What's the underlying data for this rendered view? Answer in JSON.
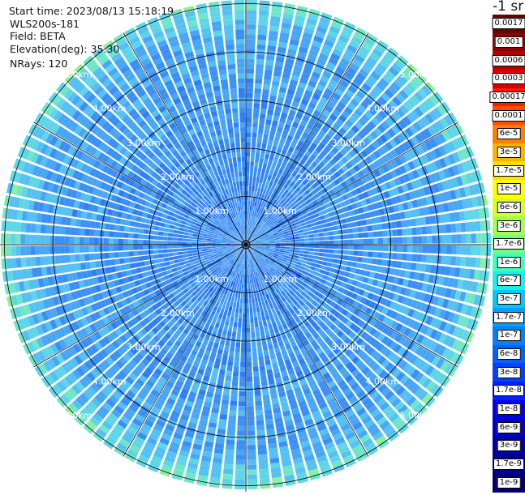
{
  "info": {
    "start_time": "Start time: 2023/08/13 15:18:19",
    "instrument": "WLS200s-181",
    "field": "Field: BETA",
    "elevation": "Elevation(deg): 35.30",
    "nrays": "NRays: 120"
  },
  "range_rings": [
    {
      "label": "1.00km",
      "km": 1
    },
    {
      "label": "2.00km",
      "km": 2
    },
    {
      "label": "3.00km",
      "km": 3
    },
    {
      "label": "4.00km",
      "km": 4
    },
    {
      "label": "5.00km",
      "km": 5
    }
  ],
  "max_range_km": 5.0,
  "colorbar": {
    "title": "-1 sr",
    "labels": [
      "0.0017",
      "0.001",
      "0.0006",
      "0.0003",
      "0.00017",
      "0.0001",
      "6e-5",
      "3e-5",
      "1.7e-5",
      "1e-5",
      "6e-6",
      "3e-6",
      "1.7e-6",
      "1e-6",
      "6e-7",
      "3e-7",
      "1.7e-7",
      "1e-7",
      "6e-8",
      "3e-8",
      "1.7e-8",
      "1e-8",
      "6e-9",
      "3e-9",
      "1.7e-9",
      "1e-9"
    ],
    "colors": [
      "#6b0000",
      "#8f0000",
      "#b30000",
      "#d80000",
      "#ff1a00",
      "#ff4d00",
      "#ff8000",
      "#ffb300",
      "#ffe000",
      "#ffff00",
      "#d8ff1e",
      "#a0ff57",
      "#6dff8a",
      "#3dffba",
      "#18f0e8",
      "#00c8ff",
      "#00a0ff",
      "#0080ff",
      "#0060ff",
      "#0040ff",
      "#0020ff",
      "#0000f0",
      "#0000cc",
      "#0000a8",
      "#00008a",
      "#000070"
    ]
  },
  "ppi": {
    "type": "ppi",
    "rays": 120,
    "rings": 5,
    "palette": [
      "#1f5fe6",
      "#2f7ef2",
      "#3b8ff5",
      "#48a6f5",
      "#55c0f2",
      "#5fd6e8",
      "#70e6c8",
      "#8ef09a",
      "#b8f07a"
    ]
  }
}
